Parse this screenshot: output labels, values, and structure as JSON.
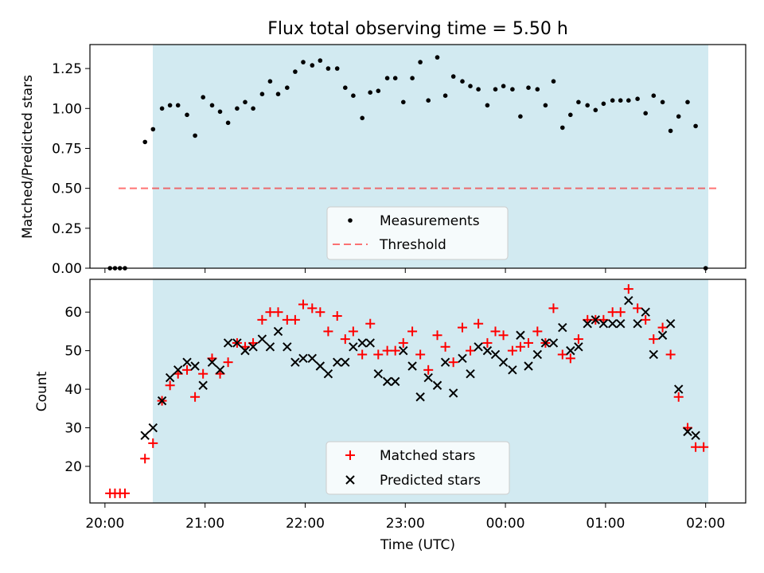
{
  "figure": {
    "title": "Flux total observing time = 5.50 h",
    "xlabel": "Time (UTC)"
  },
  "colors": {
    "span": "#add8e6",
    "matched": "#ff0000",
    "predicted": "#000000",
    "threshold": "#ff0000",
    "measurement": "#000000"
  },
  "chart_data": [
    {
      "type": "scatter",
      "panel": "top",
      "ylabel": "Matched/Predicted stars",
      "xlim": [
        -0.15,
        6.4
      ],
      "ylim": [
        0,
        1.4
      ],
      "yticks": [
        0,
        0.25,
        0.5,
        0.75,
        1.0,
        1.25
      ],
      "ytick_labels": [
        "0.00",
        "0.25",
        "0.50",
        "0.75",
        "1.00",
        "1.25"
      ],
      "observing_span": [
        0.4,
        5.9
      ],
      "threshold": {
        "value": 0.5,
        "x_range": [
          0.05,
          6.0
        ]
      },
      "legend": {
        "position": "lower-center",
        "entries": [
          "Measurements",
          "Threshold"
        ]
      },
      "series": [
        {
          "name": "Measurements",
          "marker": "dot",
          "x": [
            0.05,
            0.1,
            0.15,
            0.2,
            0.4,
            0.48,
            0.57,
            0.65,
            0.73,
            0.82,
            0.9,
            0.98,
            1.07,
            1.15,
            1.23,
            1.32,
            1.4,
            1.48,
            1.57,
            1.65,
            1.73,
            1.82,
            1.9,
            1.98,
            2.07,
            2.15,
            2.23,
            2.32,
            2.4,
            2.48,
            2.57,
            2.65,
            2.73,
            2.82,
            2.9,
            2.98,
            3.07,
            3.15,
            3.23,
            3.32,
            3.4,
            3.48,
            3.57,
            3.65,
            3.73,
            3.82,
            3.9,
            3.98,
            4.07,
            4.15,
            4.23,
            4.32,
            4.4,
            4.48,
            4.57,
            4.65,
            4.73,
            4.82,
            4.9,
            4.98,
            5.07,
            5.15,
            5.23,
            5.32,
            5.4,
            5.48,
            5.57,
            5.65,
            5.73,
            5.82,
            5.9,
            6.0
          ],
          "y": [
            0,
            0,
            0,
            0,
            0.79,
            0.87,
            1.0,
            1.02,
            1.02,
            0.96,
            0.83,
            1.07,
            1.02,
            0.98,
            0.91,
            1.0,
            1.04,
            1.0,
            1.09,
            1.17,
            1.09,
            1.13,
            1.23,
            1.29,
            1.27,
            1.3,
            1.25,
            1.25,
            1.13,
            1.08,
            0.94,
            1.1,
            1.11,
            1.19,
            1.19,
            1.04,
            1.19,
            1.29,
            1.05,
            1.32,
            1.08,
            1.2,
            1.17,
            1.14,
            1.12,
            1.02,
            1.12,
            1.14,
            1.12,
            0.95,
            1.13,
            1.12,
            1.02,
            1.17,
            0.88,
            0.96,
            1.04,
            1.02,
            0.99,
            1.03,
            1.05,
            1.05,
            1.05,
            1.06,
            0.97,
            1.08,
            1.04,
            0.86,
            0.95,
            1.04,
            0.89,
            0
          ]
        }
      ]
    },
    {
      "type": "scatter",
      "panel": "bottom",
      "ylabel": "Count",
      "xlim": [
        -0.15,
        6.4
      ],
      "ylim": [
        10.5,
        68.5
      ],
      "yticks": [
        20,
        30,
        40,
        50,
        60
      ],
      "xtick_labels": [
        "20:00",
        "21:00",
        "22:00",
        "23:00",
        "00:00",
        "01:00",
        "02:00"
      ],
      "observing_span": [
        0.4,
        5.9
      ],
      "legend": {
        "position": "lower-center",
        "entries": [
          "Matched stars",
          "Predicted stars"
        ]
      },
      "series": [
        {
          "name": "Matched stars",
          "marker": "plus",
          "x": [
            0.05,
            0.1,
            0.15,
            0.2,
            0.4,
            0.48,
            0.57,
            0.65,
            0.73,
            0.82,
            0.9,
            0.98,
            1.07,
            1.15,
            1.23,
            1.32,
            1.4,
            1.48,
            1.57,
            1.65,
            1.73,
            1.82,
            1.9,
            1.98,
            2.07,
            2.15,
            2.23,
            2.32,
            2.4,
            2.48,
            2.57,
            2.65,
            2.73,
            2.82,
            2.9,
            2.98,
            3.07,
            3.15,
            3.23,
            3.32,
            3.4,
            3.48,
            3.57,
            3.65,
            3.73,
            3.82,
            3.9,
            3.98,
            4.07,
            4.15,
            4.23,
            4.32,
            4.4,
            4.48,
            4.57,
            4.65,
            4.73,
            4.82,
            4.9,
            4.98,
            5.07,
            5.15,
            5.23,
            5.32,
            5.4,
            5.48,
            5.57,
            5.65,
            5.73,
            5.82,
            5.9,
            5.98
          ],
          "y": [
            13,
            13,
            13,
            13,
            22,
            26,
            37,
            41,
            44,
            45,
            38,
            44,
            48,
            44,
            47,
            52,
            51,
            52,
            58,
            60,
            60,
            58,
            58,
            62,
            61,
            60,
            55,
            59,
            53,
            55,
            49,
            57,
            49,
            50,
            50,
            52,
            55,
            49,
            45,
            54,
            51,
            47,
            56,
            50,
            57,
            52,
            55,
            54,
            50,
            51,
            52,
            55,
            52,
            61,
            49,
            48,
            53,
            58,
            58,
            58,
            60,
            60,
            66,
            61,
            58,
            53,
            56,
            49,
            38,
            30,
            25,
            25
          ]
        },
        {
          "name": "Predicted stars",
          "marker": "x",
          "x": [
            0.4,
            0.48,
            0.57,
            0.65,
            0.73,
            0.82,
            0.9,
            0.98,
            1.07,
            1.15,
            1.23,
            1.32,
            1.4,
            1.48,
            1.57,
            1.65,
            1.73,
            1.82,
            1.9,
            1.98,
            2.07,
            2.15,
            2.23,
            2.32,
            2.4,
            2.48,
            2.57,
            2.65,
            2.73,
            2.82,
            2.9,
            2.98,
            3.07,
            3.15,
            3.23,
            3.32,
            3.4,
            3.48,
            3.57,
            3.65,
            3.73,
            3.82,
            3.9,
            3.98,
            4.07,
            4.15,
            4.23,
            4.32,
            4.4,
            4.48,
            4.57,
            4.65,
            4.73,
            4.82,
            4.9,
            4.98,
            5.07,
            5.15,
            5.23,
            5.32,
            5.4,
            5.48,
            5.57,
            5.65,
            5.73,
            5.82,
            5.9
          ],
          "y": [
            28,
            30,
            37,
            43,
            45,
            47,
            46,
            41,
            47,
            45,
            52,
            52,
            50,
            51,
            53,
            51,
            55,
            51,
            47,
            48,
            48,
            46,
            44,
            47,
            47,
            51,
            52,
            52,
            44,
            42,
            42,
            50,
            46,
            38,
            43,
            41,
            47,
            39,
            48,
            44,
            51,
            50,
            49,
            47,
            45,
            54,
            46,
            49,
            52,
            52,
            56,
            50,
            51,
            57,
            58,
            57,
            57,
            57,
            63,
            57,
            60,
            49,
            54,
            57,
            40,
            29,
            28
          ]
        }
      ]
    }
  ]
}
